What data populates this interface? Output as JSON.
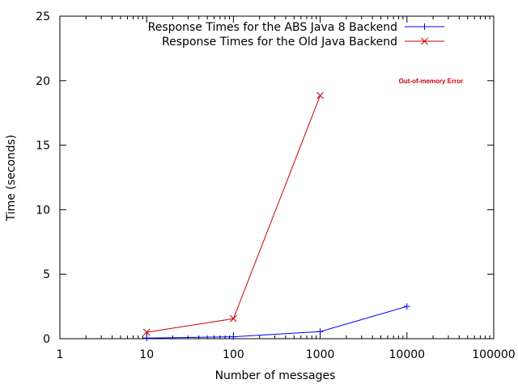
{
  "chart_data": {
    "type": "line",
    "xscale": "log",
    "xlim": [
      1,
      100000
    ],
    "ylim": [
      0,
      25
    ],
    "xticks": [
      1,
      10,
      100,
      1000,
      10000,
      100000
    ],
    "xtick_labels": [
      "1",
      "10",
      "100",
      "1000",
      "10000",
      "100000"
    ],
    "yticks": [
      0,
      5,
      10,
      15,
      20,
      25
    ],
    "ytick_labels": [
      "0",
      "5",
      "10",
      "15",
      "20",
      "25"
    ],
    "xlabel": "Number of messages",
    "ylabel": "Time (seconds)",
    "grid": false,
    "legend_position": "top-right",
    "series": [
      {
        "name": "Response Times for the ABS Java 8 Backend",
        "color": "#0000ff",
        "marker": "plus",
        "x": [
          10,
          100,
          1000,
          10000
        ],
        "y": [
          0.05,
          0.15,
          0.55,
          2.5
        ]
      },
      {
        "name": "Response Times for the Old Java Backend",
        "color": "#cc0000",
        "marker": "cross",
        "x": [
          10,
          100,
          1000
        ],
        "y": [
          0.5,
          1.55,
          18.85
        ]
      }
    ],
    "annotations": [
      {
        "text": "Out-of-memory Error",
        "x": 15000,
        "y": 20,
        "color": "#cc0000"
      }
    ]
  }
}
